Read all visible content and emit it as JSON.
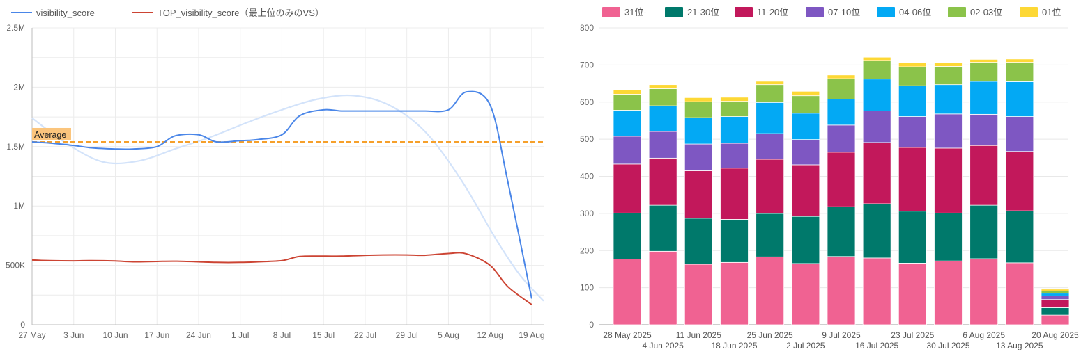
{
  "chart_data": [
    {
      "type": "line",
      "title": "",
      "xlabel": "",
      "ylabel": "",
      "ylim": [
        0,
        2500000
      ],
      "y_ticks": [
        0,
        500000,
        1000000,
        1500000,
        2000000,
        2500000
      ],
      "y_tick_labels": [
        "0",
        "500K",
        "1M",
        "1.5M",
        "2M",
        "2.5M"
      ],
      "x_tick_days": [
        0,
        7,
        14,
        21,
        28,
        35,
        42,
        49,
        56,
        63,
        70,
        77,
        84
      ],
      "x_tick_labels": [
        "27 May",
        "3 Jun",
        "10 Jun",
        "17 Jun",
        "24 Jun",
        "1 Jul",
        "8 Jul",
        "15 Jul",
        "22 Jul",
        "29 Jul",
        "5 Aug",
        "12 Aug",
        "19 Aug"
      ],
      "x_range_days": [
        0,
        86
      ],
      "grid": true,
      "legend_position": "top-left",
      "average_line": {
        "label": "Average",
        "value": 1540000,
        "color": "#f6a02a"
      },
      "series": [
        {
          "name": "visibility_score",
          "color": "#4a86e8",
          "days": [
            0,
            3,
            7,
            10,
            14,
            17,
            21,
            24,
            28,
            31,
            35,
            38,
            42,
            45,
            49,
            52,
            56,
            59,
            63,
            66,
            70,
            73,
            77,
            80,
            84
          ],
          "values": [
            1540000,
            1530000,
            1510000,
            1490000,
            1480000,
            1480000,
            1500000,
            1590000,
            1600000,
            1540000,
            1550000,
            1560000,
            1600000,
            1760000,
            1810000,
            1800000,
            1800000,
            1800000,
            1800000,
            1800000,
            1810000,
            1960000,
            1850000,
            1200000,
            220000
          ]
        },
        {
          "name": "TOP_visibility_score（最上位のみのVS）",
          "color": "#cc4433",
          "days": [
            0,
            3,
            7,
            10,
            14,
            17,
            21,
            24,
            28,
            31,
            35,
            38,
            42,
            45,
            49,
            52,
            56,
            59,
            63,
            66,
            70,
            73,
            77,
            80,
            84
          ],
          "values": [
            545000,
            540000,
            538000,
            540000,
            537000,
            530000,
            533000,
            535000,
            530000,
            525000,
            525000,
            530000,
            540000,
            575000,
            578000,
            578000,
            585000,
            588000,
            588000,
            585000,
            600000,
            598000,
            500000,
            320000,
            170000
          ]
        }
      ],
      "trendline": {
        "color": "#d3e3fa",
        "days": [
          0,
          6,
          12,
          18,
          24,
          30,
          36,
          42,
          48,
          54,
          60,
          66,
          72,
          78,
          82,
          86
        ],
        "values": [
          1740000,
          1520000,
          1370000,
          1380000,
          1480000,
          1580000,
          1700000,
          1810000,
          1900000,
          1930000,
          1850000,
          1630000,
          1230000,
          720000,
          420000,
          200000
        ]
      }
    },
    {
      "type": "bar",
      "stacked": true,
      "title": "",
      "xlabel": "",
      "ylabel": "",
      "ylim": [
        0,
        800
      ],
      "y_ticks": [
        0,
        100,
        200,
        300,
        400,
        500,
        600,
        700,
        800
      ],
      "grid": true,
      "legend_position": "top",
      "categories": [
        "28 May 2025",
        "4 Jun 2025",
        "11 Jun 2025",
        "18 Jun 2025",
        "25 Jun 2025",
        "2 Jul 2025",
        "9 Jul 2025",
        "16 Jul 2025",
        "23 Jul 2025",
        "30 Jul 2025",
        "6 Aug 2025",
        "13 Aug 2025",
        "20 Aug 2025"
      ],
      "series": [
        {
          "name": "31位-",
          "color": "#f06292",
          "values": [
            177,
            198,
            163,
            168,
            183,
            165,
            184,
            180,
            166,
            172,
            178,
            167,
            26
          ]
        },
        {
          "name": "21-30位",
          "color": "#00796b",
          "values": [
            124,
            124,
            124,
            116,
            117,
            127,
            134,
            146,
            140,
            129,
            144,
            140,
            20
          ]
        },
        {
          "name": "11-20位",
          "color": "#c2185b",
          "values": [
            132,
            127,
            128,
            138,
            146,
            139,
            147,
            165,
            172,
            175,
            161,
            160,
            22
          ]
        },
        {
          "name": "07-10位",
          "color": "#7e57c2",
          "values": [
            75,
            72,
            72,
            67,
            69,
            68,
            73,
            85,
            83,
            92,
            84,
            94,
            10
          ]
        },
        {
          "name": "04-06位",
          "color": "#03a9f4",
          "values": [
            70,
            69,
            71,
            72,
            84,
            71,
            70,
            86,
            83,
            79,
            89,
            94,
            7
          ]
        },
        {
          "name": "02-03位",
          "color": "#8bc34a",
          "values": [
            43,
            46,
            43,
            41,
            48,
            47,
            55,
            50,
            51,
            49,
            51,
            52,
            6
          ]
        },
        {
          "name": "01位",
          "color": "#fdd835",
          "values": [
            12,
            11,
            11,
            11,
            9,
            12,
            10,
            9,
            11,
            11,
            8,
            9,
            5
          ]
        }
      ]
    }
  ]
}
